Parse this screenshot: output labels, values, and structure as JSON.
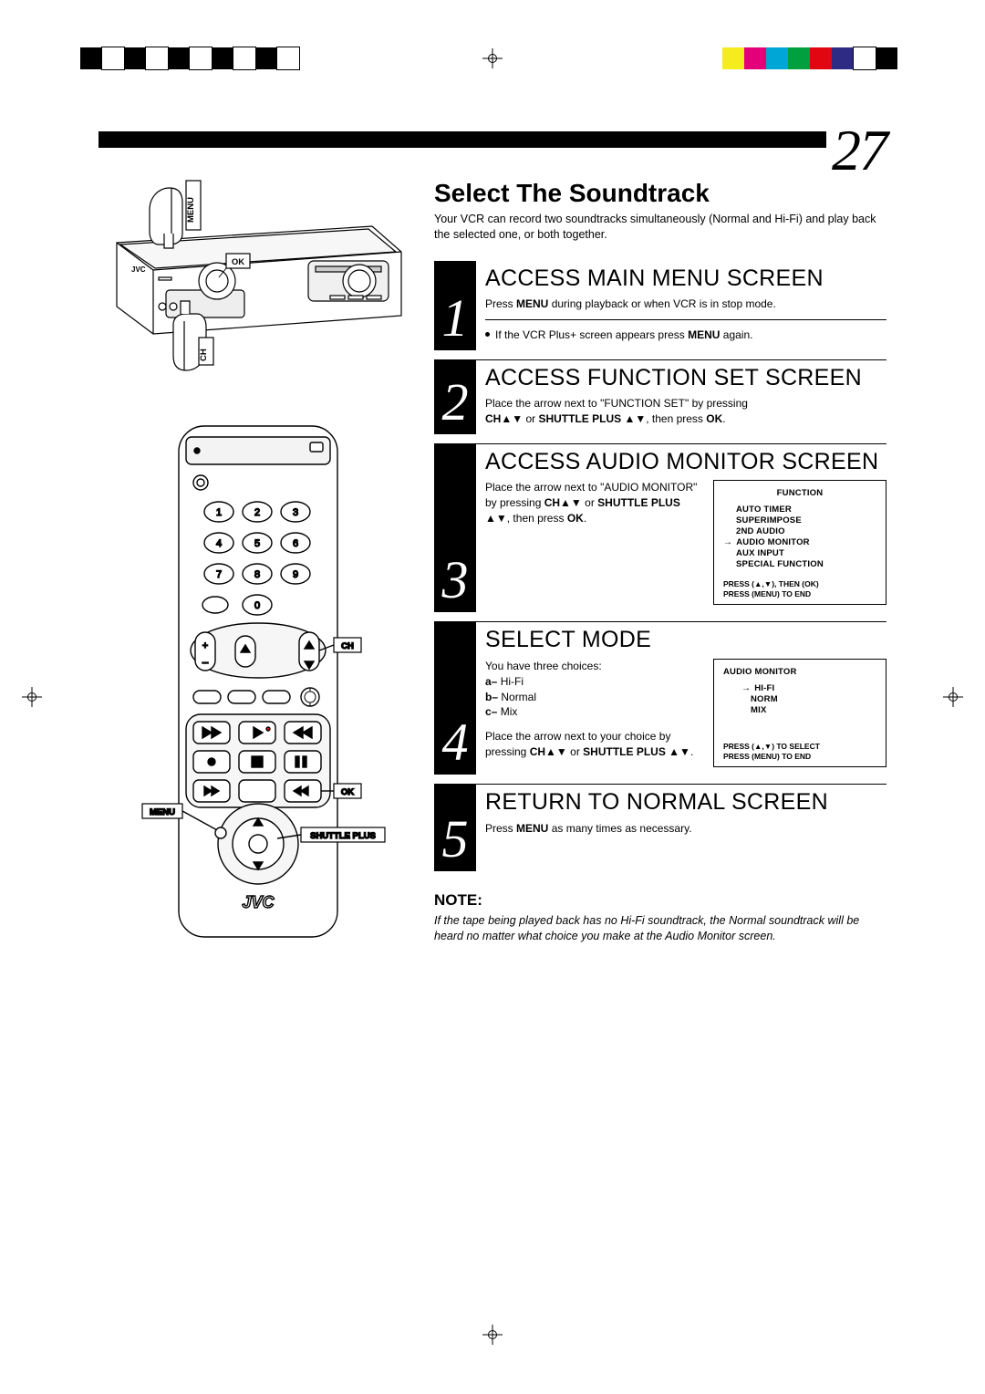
{
  "pageNumber": "27",
  "title": "Select The Soundtrack",
  "intro": "Your VCR can record two soundtracks simultaneously (Normal and Hi-Fi) and play back the selected one, or both together.",
  "steps": [
    {
      "num": "1",
      "title": "ACCESS MAIN MENU SCREEN",
      "line1a": "Press ",
      "line1b": "MENU",
      "line1c": " during playback or when VCR is in stop mode.",
      "bullet1a": "If the VCR Plus+ screen appears press ",
      "bullet1b": "MENU",
      "bullet1c": " again."
    },
    {
      "num": "2",
      "title": "ACCESS FUNCTION SET SCREEN",
      "line1": "Place the arrow next to \"FUNCTION SET\" by pressing ",
      "line2a": "CH",
      "line2b": " or ",
      "line2c": "SHUTTLE PLUS ",
      "line2d": ", then press ",
      "line2e": "OK",
      "line2f": "."
    },
    {
      "num": "3",
      "title": "ACCESS AUDIO MONITOR SCREEN",
      "txt1": "Place the arrow next to \"AUDIO MONITOR\" by pressing ",
      "txt2": "CH",
      "txt3": " or ",
      "txt4": "SHUTTLE PLUS ",
      "txt5": ", then press ",
      "txt6": "OK",
      "txt7": ".",
      "osdTitle": "FUNCTION",
      "osdItems": [
        "AUTO TIMER",
        "SUPERIMPOSE",
        "2ND AUDIO",
        "AUDIO MONITOR",
        "AUX INPUT",
        "SPECIAL FUNCTION"
      ],
      "osdFoot1": "PRESS (▲,▼), THEN (OK)",
      "osdFoot2": "PRESS (MENU) TO END"
    },
    {
      "num": "4",
      "title": "SELECT MODE",
      "txt1": "You have three choices:",
      "opts": [
        {
          "k": "a–",
          "v": " Hi-Fi"
        },
        {
          "k": "b–",
          "v": " Normal"
        },
        {
          "k": "c–",
          "v": " Mix"
        }
      ],
      "txt2": "Place the arrow next to your choice by pressing ",
      "txt3": "CH",
      "txt4": " or ",
      "txt5": "SHUTTLE PLUS ",
      "txt6": ".",
      "osdTitle": "AUDIO MONITOR",
      "osdItems": [
        "HI-FI",
        "NORM",
        "MIX"
      ],
      "osdFoot1": "PRESS (▲,▼) TO SELECT",
      "osdFoot2": "PRESS (MENU) TO END"
    },
    {
      "num": "5",
      "title": "RETURN TO NORMAL SCREEN",
      "txt1a": "Press ",
      "txt1b": "MENU",
      "txt1c": " as many times as necessary."
    }
  ],
  "noteHead": "NOTE:",
  "noteText": "If the tape being played back has no Hi-Fi soundtrack, the Normal soundtrack will be heard no matter what choice you make at the Audio Monitor screen.",
  "vcrLabels": {
    "menu": "MENU",
    "ok": "OK",
    "ch": "CH",
    "brand": "JVC"
  },
  "remoteLabels": {
    "ch": "CH",
    "ok": "OK",
    "menu": "MENU",
    "shuttle": "SHUTTLE PLUS",
    "brand": "JVC"
  },
  "colorBar": [
    "#f5ec1e",
    "#e30079",
    "#00a6d6",
    "#00a03e",
    "#e20613",
    "#2e2b85",
    "#ffffff",
    "#000000"
  ],
  "bwPattern": [
    "#000",
    "#fff",
    "#000",
    "#fff",
    "#000",
    "#fff",
    "#000",
    "#fff",
    "#000",
    "#fff"
  ]
}
